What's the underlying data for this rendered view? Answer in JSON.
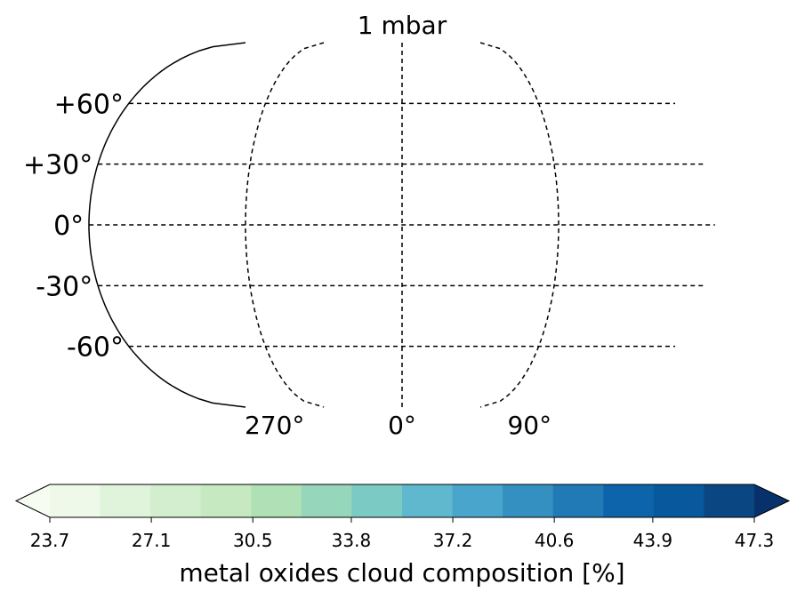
{
  "chart_data": {
    "type": "heatmap",
    "title": "1 mbar",
    "projection": "robinson-like global map",
    "lat_labels": [
      "+60°",
      "+30°",
      "0°",
      "-30°",
      "-60°"
    ],
    "lat_values": [
      60,
      30,
      0,
      -30,
      -60
    ],
    "lon_labels": [
      "270°",
      "0°",
      "90°"
    ],
    "lon_values": [
      270,
      0,
      90
    ],
    "data_lat_extent": [
      -65,
      65
    ],
    "masked_region": {
      "lon_from": -75,
      "lon_to": 90,
      "color": "#bebebe"
    },
    "colorbar": {
      "label": "metal oxides cloud composition [%]",
      "tick_labels": [
        "23.7",
        "27.1",
        "30.5",
        "33.8",
        "37.2",
        "40.6",
        "43.9",
        "47.3"
      ],
      "ticks": [
        23.7,
        27.1,
        30.5,
        33.8,
        37.2,
        40.6,
        43.9,
        47.3
      ],
      "extend": "both",
      "colors": [
        "#f7fcf0",
        "#eff9e9",
        "#e0f3db",
        "#d3eece",
        "#c6e9c2",
        "#b0e0b6",
        "#96d6bb",
        "#7bcbc4",
        "#60b8cf",
        "#4aa5cd",
        "#3490c1",
        "#2179b5",
        "#0e64aa",
        "#08589e",
        "#0a4682",
        "#08306b"
      ],
      "cmap": "GnBu"
    }
  }
}
